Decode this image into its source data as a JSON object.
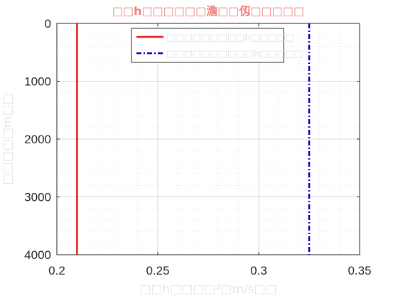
{
  "chart_data": {
    "type": "line",
    "title": "□□h□□□□□□澹□□仭□□□□□",
    "xlabel": "□□h□□□□³□m/s□□",
    "ylabel": "□□□□□m□□",
    "xlim": [
      0.2,
      0.35
    ],
    "ylim": [
      0,
      4000
    ],
    "y_reversed": true,
    "xticks": [
      0.2,
      0.25,
      0.3,
      0.35
    ],
    "xtick_labels": [
      "0.2",
      "0.25",
      "0.3",
      "0.35"
    ],
    "yticks": [
      0,
      1000,
      2000,
      3000,
      4000
    ],
    "ytick_labels": [
      "0",
      "1000",
      "2000",
      "3000",
      "4000"
    ],
    "grid": true,
    "minor_grid": true,
    "legend_position": "top",
    "series": [
      {
        "name": "□□□□□□□□□h□□□□□",
        "x": [
          0.21,
          0.21
        ],
        "y": [
          0,
          4000
        ],
        "color": "#e41a1c",
        "style": "solid"
      },
      {
        "name": "□□□□□□□□□□h□□□□□",
        "x": [
          0.325,
          0.325
        ],
        "y": [
          0,
          4000
        ],
        "color": "#0000cc",
        "style": "dash-dot"
      }
    ]
  },
  "colors": {
    "title": "#f08080",
    "axis_label": "#e5e5e5",
    "axis": "#262626",
    "grid_major": "#d9d9d9",
    "grid_minor": "#e6e6e6"
  }
}
